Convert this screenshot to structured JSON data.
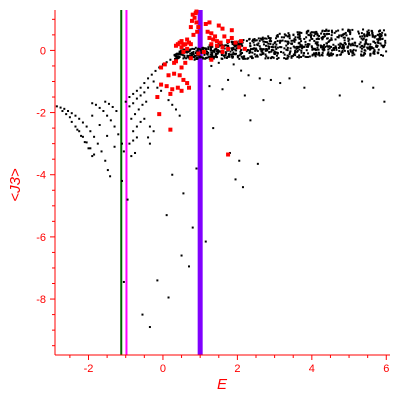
{
  "chart_data": {
    "type": "scatter",
    "xlabel": "E",
    "ylabel": "<J3>",
    "xlim": [
      -2.9,
      6.1
    ],
    "ylim": [
      -9.8,
      1.3
    ],
    "x_ticks": [
      "-2",
      "0",
      "2",
      "4",
      "6"
    ],
    "y_ticks": [
      "0",
      "-2",
      "-4",
      "-6",
      "-8"
    ],
    "colors": {
      "axis": "#ff0000",
      "black_points": "#000000",
      "red_points": "#ff0000",
      "line_green": "#006400",
      "line_magenta": "#ff00ff",
      "line_purple": "#8000ff"
    },
    "vertical_lines": [
      {
        "x": -1.12,
        "color": "#006400"
      },
      {
        "x": -0.98,
        "color": "#ff00ff"
      },
      {
        "x": 1.0,
        "color": "#8000ff"
      }
    ],
    "series": [
      {
        "color": "#000000",
        "points": [
          [
            -2.85,
            -1.8
          ],
          [
            -2.75,
            -1.84
          ],
          [
            -2.65,
            -1.88
          ],
          [
            -2.55,
            -1.95
          ],
          [
            -2.45,
            -2.02
          ],
          [
            -2.35,
            -2.1
          ],
          [
            -2.25,
            -2.2
          ],
          [
            -2.15,
            -2.32
          ],
          [
            -2.05,
            -2.45
          ],
          [
            -1.95,
            -2.6
          ],
          [
            -1.85,
            -2.78
          ],
          [
            -1.75,
            -3.0
          ],
          [
            -1.65,
            -3.25
          ],
          [
            -1.55,
            -3.55
          ],
          [
            -1.48,
            -3.85
          ],
          [
            -1.42,
            -4.05
          ],
          [
            -2.45,
            -2.3
          ],
          [
            -2.35,
            -2.45
          ],
          [
            -2.25,
            -2.6
          ],
          [
            -2.15,
            -2.78
          ],
          [
            -2.05,
            -2.96
          ],
          [
            -1.95,
            -3.15
          ],
          [
            -1.85,
            -3.35
          ],
          [
            -2.3,
            -2.55
          ],
          [
            -2.2,
            -2.75
          ],
          [
            -2.1,
            -2.95
          ],
          [
            -2.0,
            -3.15
          ],
          [
            -1.9,
            -3.4
          ],
          [
            -1.9,
            -1.7
          ],
          [
            -1.8,
            -1.75
          ],
          [
            -1.7,
            -1.85
          ],
          [
            -1.6,
            -1.95
          ],
          [
            -1.5,
            -2.1
          ],
          [
            -1.4,
            -2.25
          ],
          [
            -1.3,
            -2.45
          ],
          [
            -1.2,
            -2.7
          ],
          [
            -1.1,
            -3.0
          ],
          [
            -1.05,
            -3.25
          ],
          [
            -1.9,
            -2.1
          ],
          [
            -1.7,
            -2.4
          ],
          [
            -1.5,
            -2.75
          ],
          [
            -1.3,
            -3.1
          ],
          [
            -2.7,
            -1.95
          ],
          [
            -2.6,
            -2.05
          ],
          [
            -2.5,
            -2.15
          ],
          [
            -1.55,
            -1.65
          ],
          [
            -1.45,
            -1.72
          ],
          [
            -1.35,
            -1.82
          ],
          [
            -1.25,
            -1.95
          ],
          [
            -1.0,
            -1.65
          ],
          [
            -0.9,
            -1.5
          ],
          [
            -0.8,
            -1.4
          ],
          [
            -0.7,
            -1.3
          ],
          [
            -0.6,
            -1.2
          ],
          [
            -0.5,
            -1.05
          ],
          [
            -0.4,
            -0.9
          ],
          [
            -0.3,
            -0.78
          ],
          [
            -0.2,
            -0.66
          ],
          [
            -0.1,
            -0.55
          ],
          [
            0.0,
            -0.45
          ],
          [
            0.1,
            -0.38
          ],
          [
            0.2,
            -0.3
          ],
          [
            -0.9,
            -1.8
          ],
          [
            -0.8,
            -1.7
          ],
          [
            -0.7,
            -1.55
          ],
          [
            -0.6,
            -1.45
          ],
          [
            -0.5,
            -1.35
          ],
          [
            -0.4,
            -1.2
          ],
          [
            -0.85,
            -2.2
          ],
          [
            -0.75,
            -2.05
          ],
          [
            -0.65,
            -1.9
          ],
          [
            -0.55,
            -1.75
          ],
          [
            -0.45,
            -1.65
          ],
          [
            -0.8,
            -2.6
          ],
          [
            -0.7,
            -2.45
          ],
          [
            -0.6,
            -2.3
          ],
          [
            -0.5,
            -2.2
          ],
          [
            -0.9,
            -3.0
          ],
          [
            -0.8,
            -2.9
          ],
          [
            -0.7,
            -2.8
          ],
          [
            -0.85,
            -3.4
          ],
          [
            -0.75,
            -3.3
          ],
          [
            -0.25,
            -1.0
          ],
          [
            -0.15,
            -1.2
          ],
          [
            -0.05,
            -1.3
          ],
          [
            0.15,
            -1.6
          ],
          [
            0.25,
            -1.75
          ],
          [
            0.35,
            -1.9
          ],
          [
            0.45,
            -2.1
          ],
          [
            -0.35,
            -2.45
          ],
          [
            -0.25,
            -2.6
          ],
          [
            -0.4,
            -2.8
          ],
          [
            -0.35,
            -3.0
          ],
          [
            -1.1,
            -4.2
          ],
          [
            -0.95,
            -4.8
          ],
          [
            -1.05,
            -7.45
          ],
          [
            -0.55,
            -8.5
          ],
          [
            -0.35,
            -8.9
          ],
          [
            -0.15,
            -7.4
          ],
          [
            0.15,
            -7.95
          ],
          [
            0.5,
            -6.6
          ],
          [
            0.7,
            -6.95
          ],
          [
            0.8,
            -5.7
          ],
          [
            1.15,
            -6.15
          ],
          [
            0.1,
            -5.3
          ],
          [
            0.55,
            -4.6
          ],
          [
            0.25,
            -4.0
          ],
          [
            0.9,
            -3.8
          ],
          [
            1.35,
            -2.5
          ],
          [
            1.8,
            -3.3
          ],
          [
            1.95,
            -4.15
          ],
          [
            2.05,
            -3.55
          ],
          [
            2.15,
            -4.4
          ],
          [
            2.55,
            -3.65
          ],
          [
            2.7,
            -1.6
          ],
          [
            2.35,
            -2.25
          ],
          [
            3.15,
            -1.05
          ],
          [
            3.8,
            -1.2
          ],
          [
            4.75,
            -1.45
          ],
          [
            5.35,
            -1.0
          ],
          [
            5.65,
            -1.2
          ],
          [
            5.95,
            -1.65
          ],
          [
            0.85,
            -0.3
          ],
          [
            1.15,
            -0.25
          ],
          [
            1.3,
            -0.5
          ],
          [
            1.5,
            -0.4
          ],
          [
            1.9,
            -0.45
          ],
          [
            2.1,
            -0.65
          ],
          [
            2.3,
            -0.8
          ],
          [
            2.6,
            -0.9
          ],
          [
            2.9,
            -0.95
          ],
          [
            3.4,
            -0.9
          ],
          [
            1.75,
            -0.95
          ],
          [
            1.25,
            -1.15
          ],
          [
            2.2,
            -1.45
          ],
          [
            1.6,
            -1.25
          ]
        ],
        "band": {
          "x_from": 0.3,
          "x_to": 6.0,
          "y_from": -0.4,
          "y_to": 0.45,
          "count": 900
        }
      },
      {
        "color": "#ff0000",
        "points": [
          [
            0.8,
            1.15
          ],
          [
            0.85,
            1.05
          ],
          [
            0.9,
            0.9
          ],
          [
            0.95,
            0.75
          ],
          [
            0.78,
            0.95
          ],
          [
            0.88,
            1.2
          ],
          [
            0.92,
            0.6
          ],
          [
            0.82,
            0.5
          ],
          [
            0.75,
            0.75
          ],
          [
            0.9,
            1.25
          ],
          [
            0.4,
            0.2
          ],
          [
            0.45,
            0.25
          ],
          [
            0.5,
            0.3
          ],
          [
            0.55,
            0.18
          ],
          [
            0.6,
            0.2
          ],
          [
            0.65,
            0.35
          ],
          [
            0.7,
            0.25
          ],
          [
            0.75,
            0.2
          ],
          [
            0.35,
            0.15
          ],
          [
            0.65,
            0.05
          ],
          [
            0.5,
            0.1
          ],
          [
            1.25,
            0.4
          ],
          [
            1.35,
            0.35
          ],
          [
            1.45,
            0.3
          ],
          [
            1.55,
            0.25
          ],
          [
            1.3,
            0.2
          ],
          [
            1.45,
            0.15
          ],
          [
            1.6,
            0.1
          ],
          [
            1.75,
            0.05
          ],
          [
            1.2,
            0.6
          ],
          [
            1.3,
            0.55
          ],
          [
            1.5,
            0.8
          ],
          [
            1.4,
            0.45
          ],
          [
            1.65,
            0.45
          ],
          [
            1.75,
            0.3
          ],
          [
            1.85,
            0.4
          ],
          [
            1.95,
            0.25
          ],
          [
            2.05,
            0.1
          ],
          [
            2.1,
            0.3
          ],
          [
            2.2,
            0.05
          ],
          [
            1.85,
            0.65
          ],
          [
            1.6,
            0.7
          ],
          [
            1.15,
            0.85
          ],
          [
            1.25,
            0.9
          ],
          [
            0.35,
            -0.35
          ],
          [
            0.5,
            -0.55
          ],
          [
            0.3,
            -0.75
          ],
          [
            0.45,
            -0.8
          ],
          [
            0.55,
            -0.95
          ],
          [
            0.65,
            -1.05
          ],
          [
            0.7,
            -1.2
          ],
          [
            0.5,
            -1.3
          ],
          [
            0.1,
            -1.15
          ],
          [
            0.25,
            -1.25
          ],
          [
            0.3,
            -0.4
          ],
          [
            0.15,
            -0.8
          ],
          [
            -0.05,
            -0.55
          ],
          [
            0.05,
            -0.45
          ],
          [
            0.6,
            -0.4
          ],
          [
            0.75,
            -0.25
          ],
          [
            0.4,
            -1.2
          ],
          [
            0.2,
            -1.4
          ],
          [
            -0.15,
            -1.5
          ],
          [
            -0.05,
            -1.1
          ],
          [
            0.2,
            -2.55
          ],
          [
            -0.1,
            -2.05
          ],
          [
            1.75,
            -3.35
          ],
          [
            1.3,
            -0.3
          ],
          [
            1.6,
            -0.05
          ],
          [
            1.1,
            -0.05
          ],
          [
            0.95,
            -0.1
          ],
          [
            0.55,
            -0.05
          ]
        ]
      }
    ]
  }
}
